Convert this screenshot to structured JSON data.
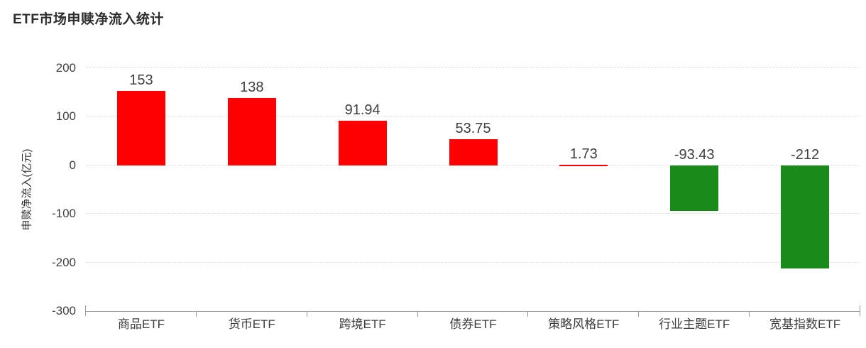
{
  "chart_data": {
    "type": "bar",
    "title": "ETF市场申赎净流入统计",
    "ylabel": "申赎净流入(亿元)",
    "xlabel": "",
    "categories": [
      "商品ETF",
      "货币ETF",
      "跨境ETF",
      "债券ETF",
      "策略风格ETF",
      "行业主题ETF",
      "宽基指数ETF"
    ],
    "values": [
      153,
      138,
      91.94,
      53.75,
      1.73,
      -93.43,
      -212
    ],
    "value_labels": [
      "153",
      "138",
      "91.94",
      "53.75",
      "1.73",
      "-93.43",
      "-212"
    ],
    "ylim": [
      -300,
      200
    ],
    "yticks": [
      200,
      100,
      0,
      -100,
      -200,
      -300
    ],
    "grid": "horizontal-dotted",
    "legend": "none",
    "colors": {
      "positive": "#ff0000",
      "negative": "#1a8a1a",
      "gridline": "#d9d9d9",
      "axis": "#999999",
      "label_text": "#404040",
      "title_text": "#2d2d2d"
    }
  }
}
